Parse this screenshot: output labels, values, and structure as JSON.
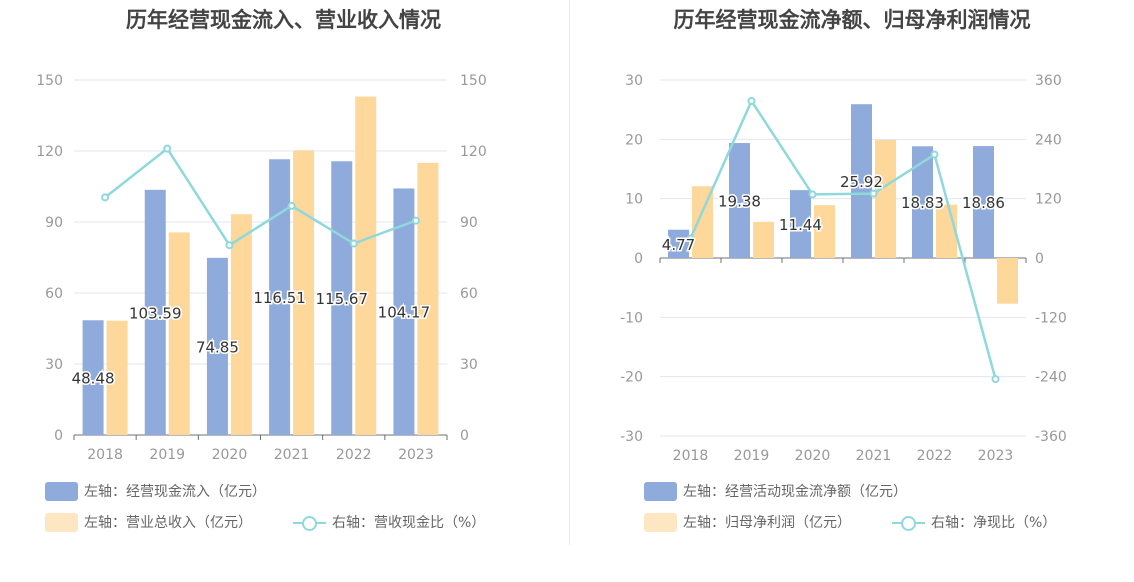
{
  "colors": {
    "blue": "#8eabdb",
    "orange": "#fed89b",
    "teal": "#8fd8dc",
    "grid": "#e3e6ef",
    "axis": "#999999"
  },
  "chart_data": [
    {
      "type": "bar",
      "title": "历年经营现金流入、营业收入情况",
      "categories": [
        "2018",
        "2019",
        "2020",
        "2021",
        "2022",
        "2023"
      ],
      "ylim": [
        0,
        150
      ],
      "yticks": [
        "0",
        "30",
        "60",
        "90",
        "120",
        "150"
      ],
      "ylim_right": [
        0,
        150
      ],
      "yticks_right": [
        "0",
        "30",
        "60",
        "90",
        "120",
        "150"
      ],
      "series": [
        {
          "name": "左轴：经营现金流入（亿元）",
          "kind": "bar",
          "axis": "left",
          "values": [
            48.48,
            103.59,
            74.85,
            116.51,
            115.67,
            104.17
          ],
          "labels": [
            "48.48",
            "103.59",
            "74.85",
            "116.51",
            "115.67",
            "104.17"
          ]
        },
        {
          "name": "左轴：营业总收入（亿元）",
          "kind": "bar",
          "axis": "left",
          "values": [
            48.3,
            85.6,
            93.3,
            120.3,
            143.0,
            115.0
          ]
        },
        {
          "name": "右轴：营收现金比（%）",
          "kind": "line",
          "axis": "right",
          "values": [
            100.4,
            121.0,
            80.2,
            96.8,
            80.9,
            90.6
          ]
        }
      ]
    },
    {
      "type": "bar",
      "title": "历年经营现金流净额、归母净利润情况",
      "categories": [
        "2018",
        "2019",
        "2020",
        "2021",
        "2022",
        "2023"
      ],
      "ylim": [
        -30,
        30
      ],
      "yticks": [
        "-30",
        "-20",
        "-10",
        "0",
        "10",
        "20",
        "30"
      ],
      "ylim_right": [
        -360,
        360
      ],
      "yticks_right": [
        "-360",
        "-240",
        "-120",
        "0",
        "120",
        "240",
        "360"
      ],
      "series": [
        {
          "name": "左轴：经营活动现金流净额（亿元）",
          "kind": "bar",
          "axis": "left",
          "values": [
            4.77,
            19.38,
            11.44,
            25.92,
            18.83,
            18.86
          ],
          "labels": [
            "4.77",
            "19.38",
            "11.44",
            "25.92",
            "18.83",
            "18.86"
          ]
        },
        {
          "name": "左轴：归母净利润（亿元）",
          "kind": "bar",
          "axis": "left",
          "values": [
            12.1,
            6.1,
            8.9,
            19.9,
            9.0,
            -7.7
          ]
        },
        {
          "name": "右轴：净现比（%）",
          "kind": "line",
          "axis": "right",
          "values": [
            39.4,
            317.6,
            128.6,
            130.2,
            209.2,
            -244.9
          ]
        }
      ]
    }
  ]
}
